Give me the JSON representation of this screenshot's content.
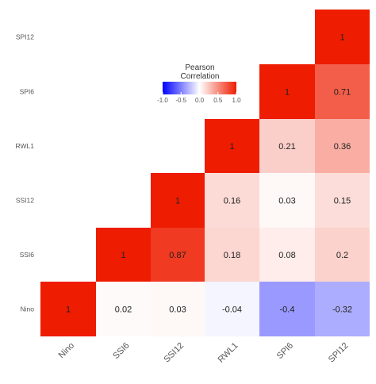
{
  "chart_data": {
    "type": "heatmap",
    "variables": [
      "Nino",
      "SSI6",
      "SSI12",
      "RWL1",
      "SPI6",
      "SPI12"
    ],
    "cells": [
      {
        "x": "Nino",
        "y": "Nino",
        "value": 1,
        "label": "1"
      },
      {
        "x": "SSI6",
        "y": "Nino",
        "value": 0.02,
        "label": "0.02"
      },
      {
        "x": "SSI12",
        "y": "Nino",
        "value": 0.03,
        "label": "0.03"
      },
      {
        "x": "RWL1",
        "y": "Nino",
        "value": -0.04,
        "label": "-0.04"
      },
      {
        "x": "SPI6",
        "y": "Nino",
        "value": -0.4,
        "label": "-0.4"
      },
      {
        "x": "SPI12",
        "y": "Nino",
        "value": -0.32,
        "label": "-0.32"
      },
      {
        "x": "SSI6",
        "y": "SSI6",
        "value": 1,
        "label": "1"
      },
      {
        "x": "SSI12",
        "y": "SSI6",
        "value": 0.87,
        "label": "0.87"
      },
      {
        "x": "RWL1",
        "y": "SSI6",
        "value": 0.18,
        "label": "0.18"
      },
      {
        "x": "SPI6",
        "y": "SSI6",
        "value": 0.08,
        "label": "0.08"
      },
      {
        "x": "SPI12",
        "y": "SSI6",
        "value": 0.2,
        "label": "0.2"
      },
      {
        "x": "SSI12",
        "y": "SSI12",
        "value": 1,
        "label": "1"
      },
      {
        "x": "RWL1",
        "y": "SSI12",
        "value": 0.16,
        "label": "0.16"
      },
      {
        "x": "SPI6",
        "y": "SSI12",
        "value": 0.03,
        "label": "0.03"
      },
      {
        "x": "SPI12",
        "y": "SSI12",
        "value": 0.15,
        "label": "0.15"
      },
      {
        "x": "RWL1",
        "y": "RWL1",
        "value": 1,
        "label": "1"
      },
      {
        "x": "SPI6",
        "y": "RWL1",
        "value": 0.21,
        "label": "0.21"
      },
      {
        "x": "SPI12",
        "y": "RWL1",
        "value": 0.36,
        "label": "0.36"
      },
      {
        "x": "SPI6",
        "y": "SPI6",
        "value": 1,
        "label": "1"
      },
      {
        "x": "SPI12",
        "y": "SPI6",
        "value": 0.71,
        "label": "0.71"
      },
      {
        "x": "SPI12",
        "y": "SPI12",
        "value": 1,
        "label": "1"
      }
    ],
    "legend": {
      "title_line1": "Pearson",
      "title_line2": "Correlation",
      "ticks": [
        "-1.0",
        "-0.5",
        "0.0",
        "0.5",
        "1.0"
      ],
      "range": [
        -1,
        1
      ],
      "placement": "top-center"
    },
    "colors": {
      "negative": "#0000ff",
      "neutral": "#ffffff",
      "positive": "#ee1c00"
    },
    "grid": false,
    "layout": "lower-right-triangle"
  }
}
